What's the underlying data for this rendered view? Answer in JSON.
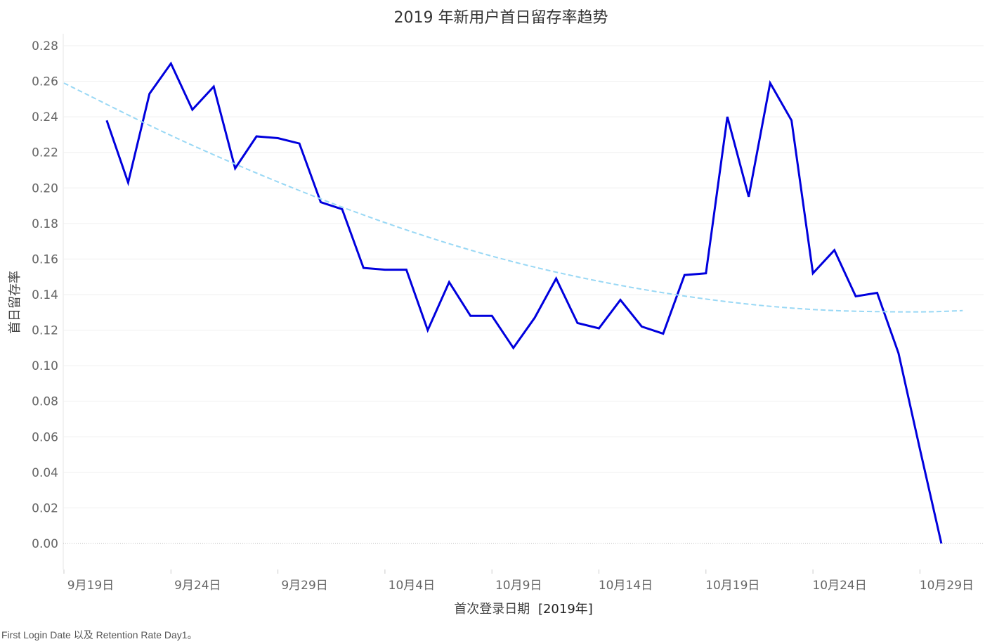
{
  "chart_data": {
    "type": "line",
    "title": "2019 年新用户首日留存率趋势",
    "ylabel": "首日留存率",
    "xlabel_main": "首次登录日期",
    "xlabel_suffix": "[2019年]",
    "ylim": [
      0,
      0.28
    ],
    "y_ticks": [
      "0.00",
      "0.02",
      "0.04",
      "0.06",
      "0.08",
      "0.10",
      "0.12",
      "0.14",
      "0.16",
      "0.18",
      "0.20",
      "0.22",
      "0.24",
      "0.26",
      "0.28"
    ],
    "x_domain": [
      "2019-09-19",
      "2019-10-31"
    ],
    "x_ticks": [
      {
        "date": "2019-09-19",
        "label": "9月19日"
      },
      {
        "date": "2019-09-24",
        "label": "9月24日"
      },
      {
        "date": "2019-09-29",
        "label": "9月29日"
      },
      {
        "date": "2019-10-04",
        "label": "10月4日"
      },
      {
        "date": "2019-10-09",
        "label": "10月9日"
      },
      {
        "date": "2019-10-14",
        "label": "10月14日"
      },
      {
        "date": "2019-10-19",
        "label": "10月19日"
      },
      {
        "date": "2019-10-24",
        "label": "10月24日"
      },
      {
        "date": "2019-10-29",
        "label": "10月29日"
      }
    ],
    "grid": "horizontal",
    "series": [
      {
        "color": "#0000dd",
        "points": [
          {
            "x": "2019-09-21",
            "y": 0.238
          },
          {
            "x": "2019-09-22",
            "y": 0.203
          },
          {
            "x": "2019-09-23",
            "y": 0.253
          },
          {
            "x": "2019-09-24",
            "y": 0.27
          },
          {
            "x": "2019-09-25",
            "y": 0.244
          },
          {
            "x": "2019-09-26",
            "y": 0.257
          },
          {
            "x": "2019-09-27",
            "y": 0.211
          },
          {
            "x": "2019-09-28",
            "y": 0.229
          },
          {
            "x": "2019-09-29",
            "y": 0.228
          },
          {
            "x": "2019-09-30",
            "y": 0.225
          },
          {
            "x": "2019-10-01",
            "y": 0.192
          },
          {
            "x": "2019-10-02",
            "y": 0.188
          },
          {
            "x": "2019-10-03",
            "y": 0.155
          },
          {
            "x": "2019-10-04",
            "y": 0.154
          },
          {
            "x": "2019-10-05",
            "y": 0.154
          },
          {
            "x": "2019-10-06",
            "y": 0.12
          },
          {
            "x": "2019-10-07",
            "y": 0.147
          },
          {
            "x": "2019-10-08",
            "y": 0.128
          },
          {
            "x": "2019-10-09",
            "y": 0.128
          },
          {
            "x": "2019-10-10",
            "y": 0.11
          },
          {
            "x": "2019-10-11",
            "y": 0.127
          },
          {
            "x": "2019-10-12",
            "y": 0.149
          },
          {
            "x": "2019-10-13",
            "y": 0.124
          },
          {
            "x": "2019-10-14",
            "y": 0.121
          },
          {
            "x": "2019-10-15",
            "y": 0.137
          },
          {
            "x": "2019-10-16",
            "y": 0.122
          },
          {
            "x": "2019-10-17",
            "y": 0.118
          },
          {
            "x": "2019-10-18",
            "y": 0.151
          },
          {
            "x": "2019-10-19",
            "y": 0.152
          },
          {
            "x": "2019-10-20",
            "y": 0.24
          },
          {
            "x": "2019-10-21",
            "y": 0.195
          },
          {
            "x": "2019-10-22",
            "y": 0.259
          },
          {
            "x": "2019-10-23",
            "y": 0.238
          },
          {
            "x": "2019-10-24",
            "y": 0.152
          },
          {
            "x": "2019-10-25",
            "y": 0.165
          },
          {
            "x": "2019-10-26",
            "y": 0.139
          },
          {
            "x": "2019-10-27",
            "y": 0.141
          },
          {
            "x": "2019-10-28",
            "y": 0.107
          },
          {
            "x": "2019-10-29",
            "y": 0.053
          },
          {
            "x": "2019-10-30",
            "y": 0.0
          }
        ]
      },
      {
        "kind": "trend",
        "style": "dashed",
        "color": "#99d8f5",
        "points": [
          {
            "x": "2019-09-19",
            "y": 0.259
          },
          {
            "x": "2019-09-24",
            "y": 0.229
          },
          {
            "x": "2019-09-29",
            "y": 0.203
          },
          {
            "x": "2019-10-04",
            "y": 0.18
          },
          {
            "x": "2019-10-09",
            "y": 0.161
          },
          {
            "x": "2019-10-14",
            "y": 0.147
          },
          {
            "x": "2019-10-19",
            "y": 0.137
          },
          {
            "x": "2019-10-24",
            "y": 0.131
          },
          {
            "x": "2019-10-29",
            "y": 0.13
          },
          {
            "x": "2019-10-31",
            "y": 0.131
          }
        ]
      }
    ]
  },
  "footer": {
    "caption": "First Login Date 以及 Retention Rate Day1。"
  }
}
